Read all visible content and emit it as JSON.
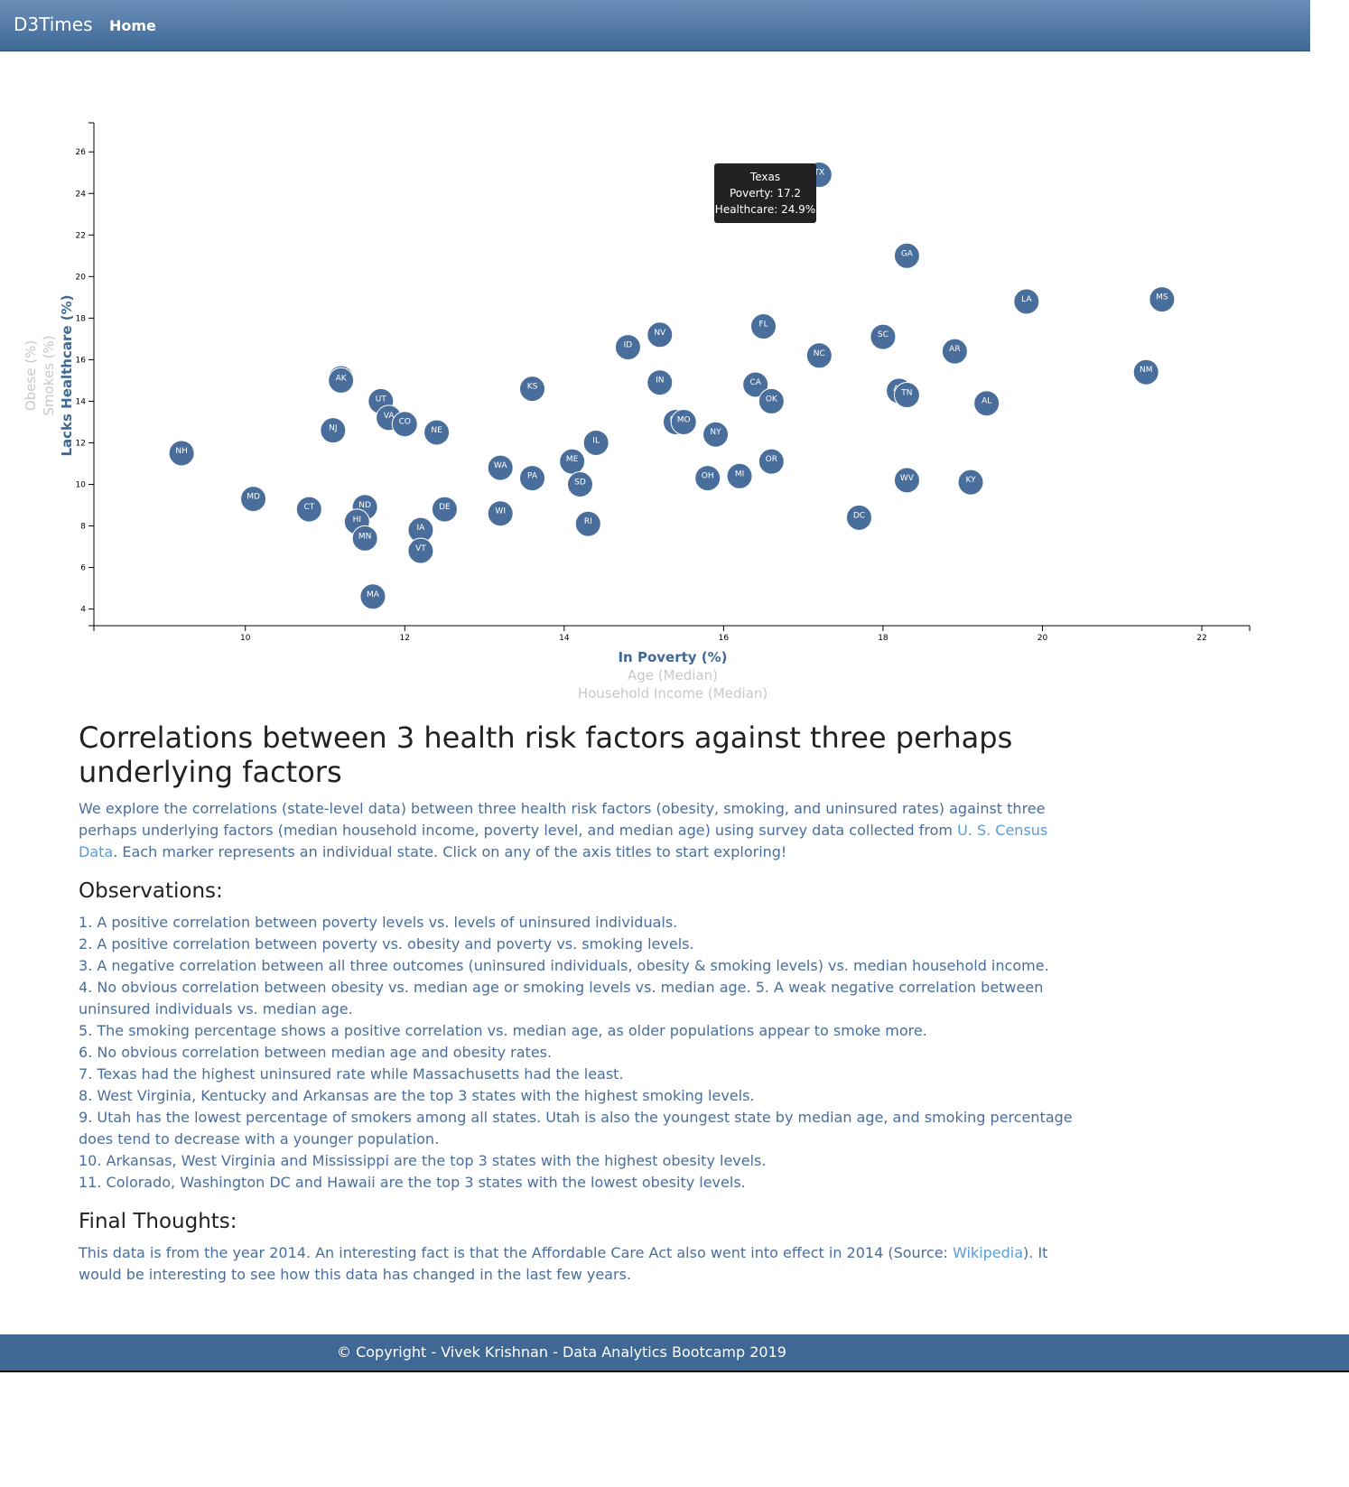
{
  "nav": {
    "brand": "D3Times",
    "home": "Home"
  },
  "chart_data": {
    "type": "scatter",
    "xlabel": "In Poverty (%)",
    "ylabel": "Lacks Healthcare (%)",
    "x_alt_labels": [
      "Age (Median)",
      "Household Income (Median)"
    ],
    "y_alt_labels": [
      "Smokes (%)",
      "Obese (%)"
    ],
    "xlim": [
      8.1,
      22.6
    ],
    "ylim": [
      3.2,
      27.4
    ],
    "x_ticks": [
      10,
      12,
      14,
      16,
      18,
      20,
      22
    ],
    "y_ticks": [
      4,
      6,
      8,
      10,
      12,
      14,
      16,
      18,
      20,
      22,
      24,
      26
    ],
    "points": [
      {
        "abbr": "TX",
        "x": 17.2,
        "y": 24.9
      },
      {
        "abbr": "GA",
        "x": 18.3,
        "y": 21.0
      },
      {
        "abbr": "LA",
        "x": 19.8,
        "y": 18.8
      },
      {
        "abbr": "MS",
        "x": 21.5,
        "y": 18.9
      },
      {
        "abbr": "FL",
        "x": 16.5,
        "y": 17.6
      },
      {
        "abbr": "NV",
        "x": 15.2,
        "y": 17.2
      },
      {
        "abbr": "SC",
        "x": 18.0,
        "y": 17.1
      },
      {
        "abbr": "ID",
        "x": 14.8,
        "y": 16.6
      },
      {
        "abbr": "AR",
        "x": 18.9,
        "y": 16.4
      },
      {
        "abbr": "NC",
        "x": 17.2,
        "y": 16.2
      },
      {
        "abbr": "NM",
        "x": 21.3,
        "y": 15.4
      },
      {
        "abbr": "WY",
        "x": 11.2,
        "y": 15.1
      },
      {
        "abbr": "AK",
        "x": 11.2,
        "y": 15.0
      },
      {
        "abbr": "IN",
        "x": 15.2,
        "y": 14.9
      },
      {
        "abbr": "CA",
        "x": 16.4,
        "y": 14.8
      },
      {
        "abbr": "KS",
        "x": 13.6,
        "y": 14.6
      },
      {
        "abbr": "AZ",
        "x": 18.2,
        "y": 14.5
      },
      {
        "abbr": "TN",
        "x": 18.3,
        "y": 14.3
      },
      {
        "abbr": "OK",
        "x": 16.6,
        "y": 14.0
      },
      {
        "abbr": "UT",
        "x": 11.7,
        "y": 14.0
      },
      {
        "abbr": "AL",
        "x": 19.3,
        "y": 13.9
      },
      {
        "abbr": "VA",
        "x": 11.8,
        "y": 13.2
      },
      {
        "abbr": "MT",
        "x": 15.4,
        "y": 13.0
      },
      {
        "abbr": "MO",
        "x": 15.5,
        "y": 13.0
      },
      {
        "abbr": "CO",
        "x": 12.0,
        "y": 12.9
      },
      {
        "abbr": "NY",
        "x": 15.9,
        "y": 12.4
      },
      {
        "abbr": "NJ",
        "x": 11.1,
        "y": 12.6
      },
      {
        "abbr": "NE",
        "x": 12.4,
        "y": 12.5
      },
      {
        "abbr": "IL",
        "x": 14.4,
        "y": 12.0
      },
      {
        "abbr": "NH",
        "x": 9.2,
        "y": 11.5
      },
      {
        "abbr": "ME",
        "x": 14.1,
        "y": 11.1
      },
      {
        "abbr": "OR",
        "x": 16.6,
        "y": 11.1
      },
      {
        "abbr": "WA",
        "x": 13.2,
        "y": 10.8
      },
      {
        "abbr": "PA",
        "x": 13.6,
        "y": 10.3
      },
      {
        "abbr": "OH",
        "x": 15.8,
        "y": 10.3
      },
      {
        "abbr": "MI",
        "x": 16.2,
        "y": 10.4
      },
      {
        "abbr": "WV",
        "x": 18.3,
        "y": 10.2
      },
      {
        "abbr": "KY",
        "x": 19.1,
        "y": 10.1
      },
      {
        "abbr": "SD",
        "x": 14.2,
        "y": 10.0
      },
      {
        "abbr": "MD",
        "x": 10.1,
        "y": 9.3
      },
      {
        "abbr": "CT",
        "x": 10.8,
        "y": 8.8
      },
      {
        "abbr": "ND",
        "x": 11.5,
        "y": 8.9
      },
      {
        "abbr": "DE",
        "x": 12.5,
        "y": 8.8
      },
      {
        "abbr": "WI",
        "x": 13.2,
        "y": 8.6
      },
      {
        "abbr": "DC",
        "x": 17.7,
        "y": 8.4
      },
      {
        "abbr": "HI",
        "x": 11.4,
        "y": 8.2
      },
      {
        "abbr": "RI",
        "x": 14.3,
        "y": 8.1
      },
      {
        "abbr": "IA",
        "x": 12.2,
        "y": 7.8
      },
      {
        "abbr": "MN",
        "x": 11.5,
        "y": 7.4
      },
      {
        "abbr": "VT",
        "x": 12.2,
        "y": 6.8
      },
      {
        "abbr": "MA",
        "x": 11.6,
        "y": 4.6
      }
    ]
  },
  "tooltip": {
    "state": "Texas",
    "line1": "Poverty: 17.2",
    "line2": "Healthcare: 24.9%"
  },
  "content": {
    "title": "Correlations between 3 health risk factors against three perhaps underlying factors",
    "intro_before": "We explore the correlations (state-level data) between three health risk factors (obesity, smoking, and uninsured rates) against three perhaps underlying factors (median household income, poverty level, and median age) using survey data collected from ",
    "intro_link": "U. S. Census Data",
    "intro_after": ". Each marker represents an individual state. Click on any of the axis titles to start exploring!",
    "observations_title": "Observations:",
    "observations": [
      "1. A positive correlation between poverty levels vs. levels of uninsured individuals.",
      "2. A positive correlation between poverty vs. obesity and poverty vs. smoking levels.",
      "3. A negative correlation between all three outcomes (uninsured individuals, obesity & smoking levels) vs. median household income.",
      "4. No obvious correlation between obesity vs. median age or smoking levels vs. median age. 5. A weak negative correlation between uninsured individuals vs. median age.",
      "5. The smoking percentage shows a positive correlation vs. median age, as older populations appear to smoke more.",
      "6. No obvious correlation between median age and obesity rates.",
      "7. Texas had the highest uninsured rate while Massachusetts had the least.",
      "8. West Virginia, Kentucky and Arkansas are the top 3 states with the highest smoking levels.",
      "9. Utah has the lowest percentage of smokers among all states. Utah is also the youngest state by median age, and smoking percentage does tend to decrease with a younger population.",
      "10. Arkansas, West Virginia and Mississippi are the top 3 states with the highest obesity levels.",
      "11. Colorado, Washington DC and Hawaii are the top 3 states with the lowest obesity levels."
    ],
    "final_title": "Final Thoughts:",
    "final_before": "This data is from the year 2014. An interesting fact is that the Affordable Care Act also went into effect in 2014 (Source: ",
    "final_link": "Wikipedia",
    "final_after": "). It would be interesting to see how this data has changed in the last few years."
  },
  "footer": {
    "text": "© Copyright - Vivek Krishnan - Data Analytics Bootcamp 2019"
  }
}
